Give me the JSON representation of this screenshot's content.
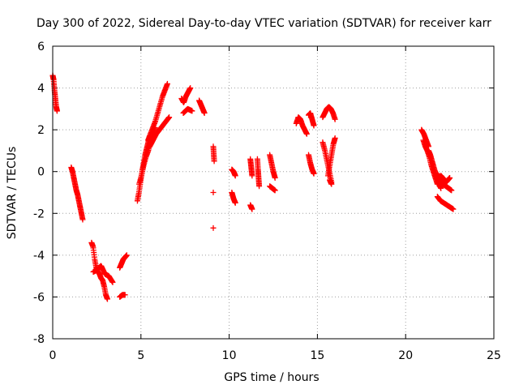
{
  "chart_data": {
    "type": "scatter",
    "title": "Day 300 of 2022, Sidereal Day-to-day VTEC variation (SDTVAR) for receiver karr",
    "xlabel": "GPS time / hours",
    "ylabel": "SDTVAR / TECUs",
    "xlim": [
      0,
      25
    ],
    "ylim": [
      -8,
      6
    ],
    "xticks": [
      0,
      5,
      10,
      15,
      20,
      25
    ],
    "yticks": [
      -8,
      -6,
      -4,
      -2,
      0,
      2,
      4,
      6
    ],
    "grid": true,
    "marker": "+",
    "color": "#ff0000",
    "series": [
      {
        "name": "SDTVAR",
        "segments": [
          {
            "x0": 0.0,
            "x1": 0.25,
            "y": [
              4.6,
              4.4,
              3.9,
              3.5,
              3.1,
              2.9
            ]
          },
          {
            "x0": 1.05,
            "x1": 1.7,
            "y": [
              0.2,
              0.0,
              -0.3,
              -0.6,
              -0.9,
              -1.1,
              -1.4,
              -1.7,
              -2.0,
              -2.3
            ]
          },
          {
            "x0": 2.2,
            "x1": 3.1,
            "y": [
              -3.4,
              -3.6,
              -4.2,
              -4.6,
              -4.8,
              -4.9,
              -5.1,
              -5.2,
              -5.5,
              -5.9,
              -6.1
            ]
          },
          {
            "x0": 2.3,
            "x1": 3.4,
            "y": [
              -4.8,
              -4.7,
              -4.5,
              -4.9,
              -5.0,
              -5.3
            ]
          },
          {
            "x0": 3.8,
            "x1": 4.2,
            "y": [
              -4.6,
              -4.4,
              -4.2,
              -4.1,
              -4.0
            ]
          },
          {
            "x0": 3.8,
            "x1": 4.1,
            "y": [
              -6.0,
              -5.9,
              -5.9
            ]
          },
          {
            "x0": 4.8,
            "x1": 5.5,
            "y": [
              -1.4,
              -1.0,
              -0.5,
              0.0,
              0.4,
              0.8,
              1.1,
              1.4,
              1.7
            ]
          },
          {
            "x0": 4.9,
            "x1": 5.8,
            "y": [
              -0.6,
              -0.2,
              0.3,
              0.7,
              1.0,
              1.4,
              1.8,
              2.1
            ]
          },
          {
            "x0": 5.4,
            "x1": 6.5,
            "y": [
              1.5,
              1.8,
              2.1,
              2.4,
              2.8,
              3.2,
              3.6,
              3.9,
              4.2
            ]
          },
          {
            "x0": 5.5,
            "x1": 6.6,
            "y": [
              1.2,
              1.5,
              1.8,
              2.0,
              2.2,
              2.4,
              2.6
            ]
          },
          {
            "x0": 7.3,
            "x1": 7.8,
            "y": [
              3.5,
              3.3,
              3.6,
              3.8,
              4.0
            ]
          },
          {
            "x0": 7.4,
            "x1": 7.9,
            "y": [
              2.8,
              3.0,
              2.9
            ]
          },
          {
            "x0": 8.3,
            "x1": 8.6,
            "y": [
              3.4,
              3.2,
              3.0,
              2.8
            ]
          },
          {
            "x0": 9.1,
            "x1": 9.15,
            "y": [
              1.2,
              0.5
            ]
          },
          {
            "x0": 9.1,
            "x1": 9.1,
            "y": [
              -1.0
            ]
          },
          {
            "x0": 9.1,
            "x1": 9.1,
            "y": [
              -2.7
            ]
          },
          {
            "x0": 10.15,
            "x1": 10.35,
            "y": [
              0.1,
              0.0,
              -0.2
            ]
          },
          {
            "x0": 10.15,
            "x1": 10.35,
            "y": [
              -1.0,
              -1.3,
              -1.5
            ]
          },
          {
            "x0": 11.2,
            "x1": 11.3,
            "y": [
              0.6,
              0.2,
              -0.2
            ]
          },
          {
            "x0": 11.2,
            "x1": 11.3,
            "y": [
              -1.6,
              -1.8
            ]
          },
          {
            "x0": 11.6,
            "x1": 11.7,
            "y": [
              0.6,
              0.1,
              -0.3,
              -0.7
            ]
          },
          {
            "x0": 12.3,
            "x1": 12.6,
            "y": [
              0.8,
              0.4,
              0.0,
              -0.3
            ]
          },
          {
            "x0": 12.3,
            "x1": 12.6,
            "y": [
              -0.7,
              -0.8,
              -0.9
            ]
          },
          {
            "x0": 13.8,
            "x1": 14.4,
            "y": [
              2.3,
              2.6,
              2.5,
              2.2,
              2.0,
              1.8
            ]
          },
          {
            "x0": 14.5,
            "x1": 14.8,
            "y": [
              2.7,
              2.8,
              2.5,
              2.2
            ]
          },
          {
            "x0": 14.5,
            "x1": 14.8,
            "y": [
              0.8,
              0.4,
              0.1,
              -0.1
            ]
          },
          {
            "x0": 15.3,
            "x1": 16.0,
            "y": [
              2.6,
              2.8,
              3.0,
              3.1,
              3.0,
              2.8,
              2.5
            ]
          },
          {
            "x0": 15.3,
            "x1": 15.8,
            "y": [
              1.4,
              1.0,
              0.5,
              0.0,
              -0.5
            ]
          },
          {
            "x0": 15.6,
            "x1": 16.0,
            "y": [
              -0.2,
              0.3,
              0.8,
              1.3,
              1.6
            ]
          },
          {
            "x0": 15.7,
            "x1": 15.8,
            "y": [
              -0.4,
              -0.6
            ]
          },
          {
            "x0": 20.9,
            "x1": 21.3,
            "y": [
              2.0,
              1.8,
              1.5,
              1.2
            ]
          },
          {
            "x0": 21.0,
            "x1": 21.8,
            "y": [
              1.5,
              1.2,
              1.0,
              0.7,
              0.3,
              0.0,
              -0.3,
              -0.6
            ]
          },
          {
            "x0": 21.3,
            "x1": 22.0,
            "y": [
              1.0,
              0.8,
              0.5,
              0.2,
              -0.1,
              -0.4,
              -0.6,
              -0.8
            ]
          },
          {
            "x0": 21.8,
            "x1": 22.6,
            "y": [
              -0.1,
              -0.4,
              -0.6,
              -0.7,
              -0.8,
              -0.9
            ]
          },
          {
            "x0": 22.0,
            "x1": 22.5,
            "y": [
              -0.2,
              -0.3,
              -0.4,
              -0.5,
              -0.4,
              -0.3
            ]
          },
          {
            "x0": 21.8,
            "x1": 22.7,
            "y": [
              -1.2,
              -1.4,
              -1.5,
              -1.6,
              -1.7,
              -1.8
            ]
          }
        ]
      }
    ]
  }
}
